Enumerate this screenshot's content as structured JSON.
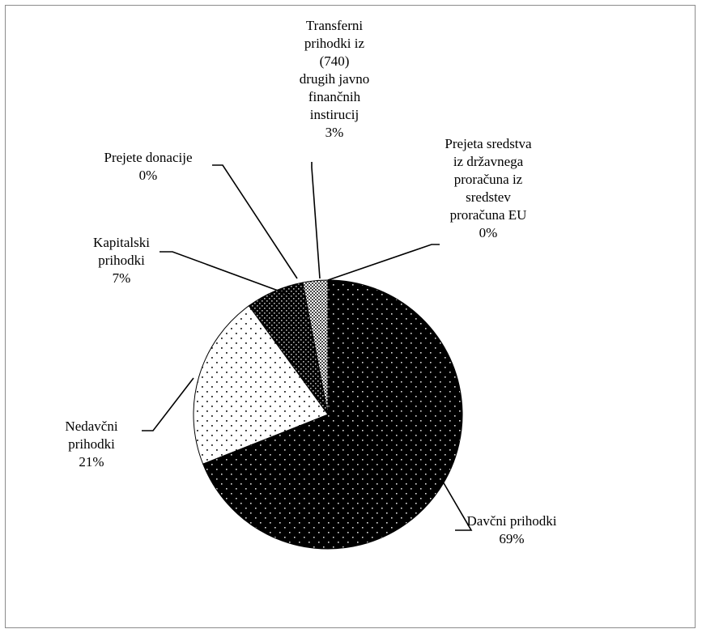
{
  "chart_data": {
    "type": "pie",
    "title": "",
    "slices": [
      {
        "label": "Davčni prihodki",
        "value": 69,
        "label_text": "69%",
        "pattern": "dark-dots"
      },
      {
        "label": "Nedavčni prihodki",
        "value": 21,
        "label_text": "21%",
        "pattern": "light-dots"
      },
      {
        "label": "Kapitalski prihodki",
        "value": 7,
        "label_text": "7%",
        "pattern": "dark-dense"
      },
      {
        "label": "Prejete donacije",
        "value": 0,
        "label_text": "0%",
        "pattern": "none"
      },
      {
        "label": "Transferni prihodki iz (740) drugih javno finančnih instirucij",
        "value": 3,
        "label_text": "3%",
        "pattern": "checker"
      },
      {
        "label": "Prejeta sredstva iz državnega proračuna iz sredstev proračuna EU",
        "value": 0,
        "label_text": "0%",
        "pattern": "none"
      }
    ],
    "label_lines": {
      "davcni": [
        "Davčni prihodki",
        "69%"
      ],
      "nedavcni": [
        "Nedavčni",
        "prihodki",
        "21%"
      ],
      "kapitalski": [
        "Kapitalski",
        "prihodki",
        "7%"
      ],
      "donacije": [
        "Prejete donacije",
        "0%"
      ],
      "transferni": [
        "Transferni",
        "prihodki iz",
        "(740)",
        "drugih javno",
        "finančnih",
        "instirucij",
        "3%"
      ],
      "eu": [
        "Prejeta sredstva",
        "iz državnega",
        "proračuna iz",
        "sredstev",
        "proračuna EU",
        "0%"
      ]
    },
    "legend": "none",
    "colors": {
      "dark": "#000000",
      "light": "#ffffff",
      "stroke": "#000000"
    }
  }
}
